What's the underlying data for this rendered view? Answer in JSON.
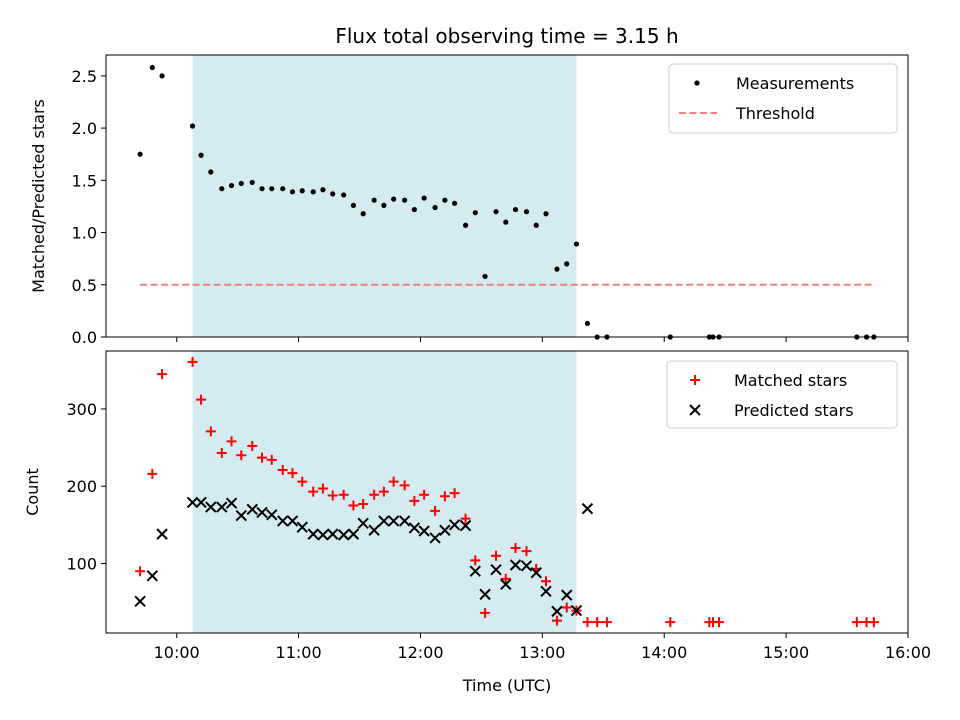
{
  "chart_data": {
    "title": "Flux total observing time = 3.15 h",
    "xlabel": "Time (UTC)",
    "x_ticks": [
      10,
      11,
      12,
      13,
      14,
      15,
      16
    ],
    "x_tick_labels": [
      "10:00",
      "11:00",
      "12:00",
      "13:00",
      "14:00",
      "15:00",
      "16:00"
    ],
    "xlim": [
      9.42,
      16.0
    ],
    "shaded_interval": {
      "x": [
        10.13,
        13.28
      ],
      "color": "#d4ebf1"
    },
    "panels": [
      {
        "type": "scatter",
        "ylabel": "Matched/Predicted stars",
        "ylim": [
          0,
          2.7
        ],
        "y_ticks": [
          0,
          0.5,
          1.0,
          1.5,
          2.0,
          2.5
        ],
        "y_tick_labels": [
          "0.0",
          "0.5",
          "1.0",
          "1.5",
          "2.0",
          "2.5"
        ],
        "legend_position": "upper right",
        "legend": [
          {
            "name": "Measurements",
            "marker": "dot",
            "color": "#000000"
          },
          {
            "name": "Threshold",
            "marker": "dashed-line",
            "color": "#f08080"
          }
        ],
        "series": [
          {
            "name": "Measurements",
            "marker": "dot",
            "color": "#000000",
            "x": [
              9.7,
              9.8,
              9.88,
              10.13,
              10.2,
              10.28,
              10.37,
              10.45,
              10.53,
              10.62,
              10.7,
              10.78,
              10.87,
              10.95,
              11.03,
              11.12,
              11.2,
              11.28,
              11.37,
              11.45,
              11.53,
              11.62,
              11.7,
              11.78,
              11.87,
              11.95,
              12.03,
              12.12,
              12.2,
              12.28,
              12.37,
              12.45,
              12.53,
              12.62,
              12.7,
              12.78,
              12.87,
              12.95,
              13.03,
              13.12,
              13.2,
              13.28,
              13.37,
              13.45,
              13.53,
              14.05,
              14.37,
              14.4,
              14.45,
              15.58,
              15.66,
              15.72
            ],
            "y": [
              1.75,
              2.58,
              2.5,
              2.02,
              1.74,
              1.58,
              1.42,
              1.45,
              1.47,
              1.48,
              1.42,
              1.42,
              1.42,
              1.39,
              1.4,
              1.39,
              1.41,
              1.37,
              1.36,
              1.26,
              1.18,
              1.31,
              1.26,
              1.32,
              1.31,
              1.22,
              1.33,
              1.24,
              1.31,
              1.28,
              1.07,
              1.19,
              0.58,
              1.2,
              1.1,
              1.22,
              1.2,
              1.07,
              1.18,
              0.65,
              0.7,
              0.89,
              0.13,
              0.0,
              0.0,
              0.0,
              0.0,
              0.0,
              0.0,
              0.0,
              0.0,
              0.0
            ]
          },
          {
            "name": "Threshold",
            "marker": "dashed-line",
            "color": "#f08080",
            "x": [
              9.7,
              15.72
            ],
            "y": [
              0.5,
              0.5
            ]
          }
        ]
      },
      {
        "type": "scatter",
        "ylabel": "Count",
        "ylim": [
          10,
          375
        ],
        "y_ticks": [
          100,
          200,
          300
        ],
        "y_tick_labels": [
          "100",
          "200",
          "300"
        ],
        "legend_position": "upper right",
        "legend": [
          {
            "name": "Matched stars",
            "marker": "plus",
            "color": "#ff0000"
          },
          {
            "name": "Predicted stars",
            "marker": "x",
            "color": "#000000"
          }
        ],
        "series": [
          {
            "name": "Matched stars",
            "marker": "plus",
            "color": "#ff0000",
            "x": [
              9.7,
              9.8,
              9.88,
              10.13,
              10.2,
              10.28,
              10.37,
              10.45,
              10.53,
              10.62,
              10.7,
              10.78,
              10.87,
              10.95,
              11.03,
              11.12,
              11.2,
              11.28,
              11.37,
              11.45,
              11.53,
              11.62,
              11.7,
              11.78,
              11.87,
              11.95,
              12.03,
              12.12,
              12.2,
              12.28,
              12.37,
              12.45,
              12.53,
              12.62,
              12.7,
              12.78,
              12.87,
              12.95,
              13.03,
              13.12,
              13.2,
              13.28,
              13.37,
              13.45,
              13.53,
              14.05,
              14.37,
              14.4,
              14.45,
              15.58,
              15.66,
              15.72
            ],
            "y": [
              90,
              216,
              345,
              361,
              312,
              271,
              243,
              258,
              240,
              252,
              237,
              234,
              221,
              217,
              206,
              193,
              197,
              188,
              189,
              175,
              177,
              189,
              193,
              206,
              201,
              181,
              189,
              168,
              187,
              191,
              158,
              104,
              36,
              110,
              80,
              120,
              116,
              93,
              77,
              26,
              43,
              39,
              24,
              24,
              24,
              24,
              24,
              24,
              24,
              24,
              24,
              24
            ]
          },
          {
            "name": "Predicted stars",
            "marker": "x",
            "color": "#000000",
            "x": [
              9.7,
              9.8,
              9.88,
              10.13,
              10.2,
              10.28,
              10.37,
              10.45,
              10.53,
              10.62,
              10.7,
              10.78,
              10.87,
              10.95,
              11.03,
              11.12,
              11.2,
              11.28,
              11.37,
              11.45,
              11.53,
              11.62,
              11.7,
              11.78,
              11.87,
              11.95,
              12.03,
              12.12,
              12.2,
              12.28,
              12.37,
              12.45,
              12.53,
              12.62,
              12.7,
              12.78,
              12.87,
              12.95,
              13.03,
              13.12,
              13.2,
              13.28,
              13.37
            ],
            "y": [
              51,
              84,
              138,
              179,
              179,
              173,
              173,
              178,
              162,
              170,
              166,
              163,
              155,
              155,
              147,
              138,
              137,
              138,
              137,
              138,
              152,
              143,
              155,
              155,
              155,
              146,
              142,
              133,
              143,
              150,
              149,
              90,
              60,
              92,
              73,
              98,
              97,
              88,
              64,
              38,
              59,
              39,
              171
            ]
          }
        ]
      }
    ]
  }
}
